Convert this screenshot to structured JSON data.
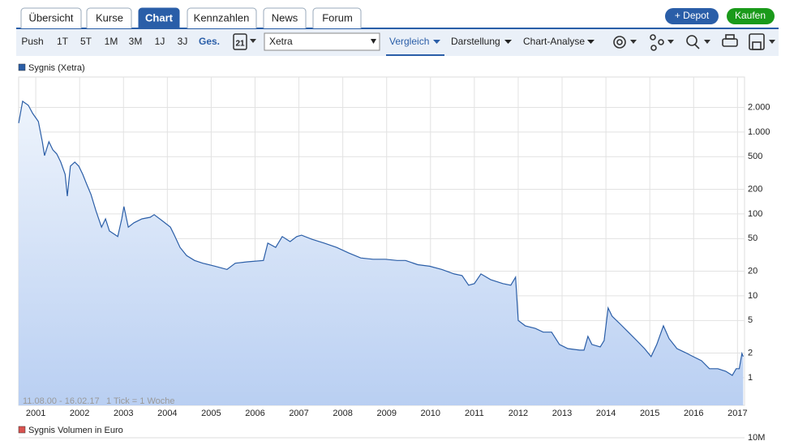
{
  "tabs": [
    "Übersicht",
    "Kurse",
    "Chart",
    "Kennzahlen",
    "News",
    "Forum"
  ],
  "buttons": [
    "+ Depot",
    "Kaufen"
  ],
  "toolbar": {
    "periods": [
      "Push",
      "1T",
      "5T",
      "1M",
      "3M",
      "1J",
      "3J",
      "Ges."
    ],
    "calendar_day": "21",
    "exchange": "Xetra",
    "menus": [
      "Vergleich",
      "Darstellung",
      "Chart-Analyse"
    ]
  },
  "chart_data": {
    "type": "line",
    "log_scale": true,
    "grid": true,
    "series": [
      {
        "name": "Sygnis (Xetra)",
        "color": "#2b5ea7",
        "values": [
          1285,
          2380,
          2120,
          1690,
          1345,
          760,
          516,
          760,
          606,
          540,
          430,
          305,
          165,
          384,
          430,
          384,
          305,
          232,
          173,
          110,
          69,
          87,
          62,
          53,
          87,
          123,
          69,
          78,
          87,
          91,
          98,
          83,
          69,
          55,
          39,
          31,
          27,
          25,
          23,
          21,
          25,
          26,
          27,
          44,
          39,
          53,
          46,
          53,
          55,
          49,
          44,
          39,
          33.5,
          29,
          28,
          28,
          27,
          27,
          24,
          23,
          21,
          18.5,
          17.7,
          13.5,
          14.1,
          18.5,
          15.8,
          14.1,
          13.5,
          16.9,
          5.0,
          4.3,
          4.0,
          3.6,
          3.6,
          2.55,
          2.27,
          2.17,
          2.17,
          3.2,
          2.55,
          2.38,
          2.85,
          7.1,
          5.65,
          4.5,
          3.6,
          2.85,
          2.27,
          1.81,
          2.55,
          4.3,
          3.0,
          2.27,
          2.03,
          1.81,
          1.61,
          1.29,
          1.29,
          1.2,
          1.07,
          1.29,
          1.29,
          1.98,
          1.81
        ]
      }
    ],
    "x": [
      2000.61,
      2000.7,
      2000.83,
      2000.93,
      2001.06,
      2001.15,
      2001.2,
      2001.3,
      2001.39,
      2001.48,
      2001.57,
      2001.67,
      2001.72,
      2001.79,
      2001.89,
      2001.98,
      2002.07,
      2002.16,
      2002.26,
      2002.37,
      2002.5,
      2002.59,
      2002.68,
      2002.87,
      2002.96,
      2003.01,
      2003.11,
      2003.24,
      2003.42,
      2003.61,
      2003.7,
      2003.88,
      2004.07,
      2004.16,
      2004.29,
      2004.44,
      2004.62,
      2004.81,
      2005.09,
      2005.36,
      2005.55,
      2005.82,
      2006.19,
      2006.29,
      2006.47,
      2006.62,
      2006.8,
      2006.95,
      2007.06,
      2007.3,
      2007.58,
      2007.86,
      2008.13,
      2008.41,
      2008.69,
      2008.97,
      2009.24,
      2009.43,
      2009.71,
      2009.98,
      2010.26,
      2010.54,
      2010.72,
      2010.87,
      2011.0,
      2011.15,
      2011.37,
      2011.65,
      2011.83,
      2011.94,
      2012.0,
      2012.16,
      2012.39,
      2012.57,
      2012.76,
      2012.94,
      2013.13,
      2013.4,
      2013.5,
      2013.59,
      2013.68,
      2013.87,
      2013.96,
      2014.05,
      2014.14,
      2014.33,
      2014.51,
      2014.7,
      2014.88,
      2015.03,
      2015.16,
      2015.31,
      2015.44,
      2015.62,
      2015.81,
      2015.99,
      2016.18,
      2016.36,
      2016.55,
      2016.73,
      2016.88,
      2016.97,
      2017.04,
      2017.1,
      2017.13
    ],
    "xlim": [
      2000.61,
      2017.16
    ],
    "xticks": [
      2001,
      2002,
      2003,
      2004,
      2005,
      2006,
      2007,
      2008,
      2009,
      2010,
      2011,
      2012,
      2013,
      2014,
      2015,
      2016,
      2017
    ],
    "ylim": [
      0.46,
      4700
    ],
    "yticks": [
      1,
      2,
      5,
      10,
      20,
      50,
      100,
      200,
      500,
      {
        "value": 1000,
        "label": "1.000"
      },
      {
        "value": 2000,
        "label": "2.000"
      }
    ],
    "annotations": [
      "11.08.00 - 16.02.17",
      "1 Tick = 1 Woche"
    ]
  },
  "volume_panel": {
    "title": "Sygnis Volumen in Euro",
    "color": "#d9534f",
    "tick_label": "10M"
  }
}
